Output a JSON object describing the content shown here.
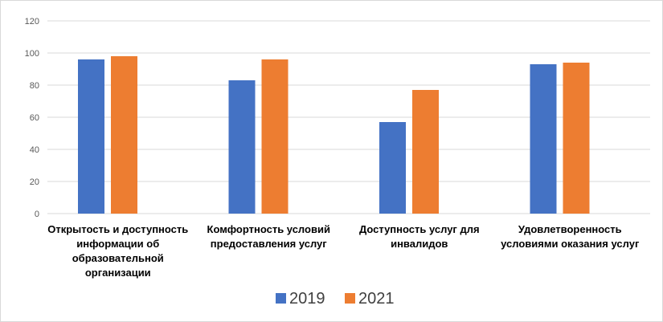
{
  "chart_data": {
    "type": "bar",
    "title": "",
    "xlabel": "",
    "ylabel": "",
    "ylim": [
      0,
      120
    ],
    "yticks": [
      0,
      20,
      40,
      60,
      80,
      100,
      120
    ],
    "grid": true,
    "legend": "bottom",
    "categories": [
      [
        "Открытость и доступность",
        "информации об",
        "образовательной",
        "организации"
      ],
      [
        "Комфортность условий",
        "предоставления услуг"
      ],
      [
        "Доступность услуг для",
        "инвалидов"
      ],
      [
        "Удовлетворенность",
        "условиями оказания  услуг"
      ]
    ],
    "series": [
      {
        "name": "2019",
        "color": "#4472c4",
        "values": [
          96,
          83,
          57,
          93
        ]
      },
      {
        "name": "2021",
        "color": "#ed7d31",
        "values": [
          98,
          96,
          77,
          94
        ]
      }
    ]
  }
}
